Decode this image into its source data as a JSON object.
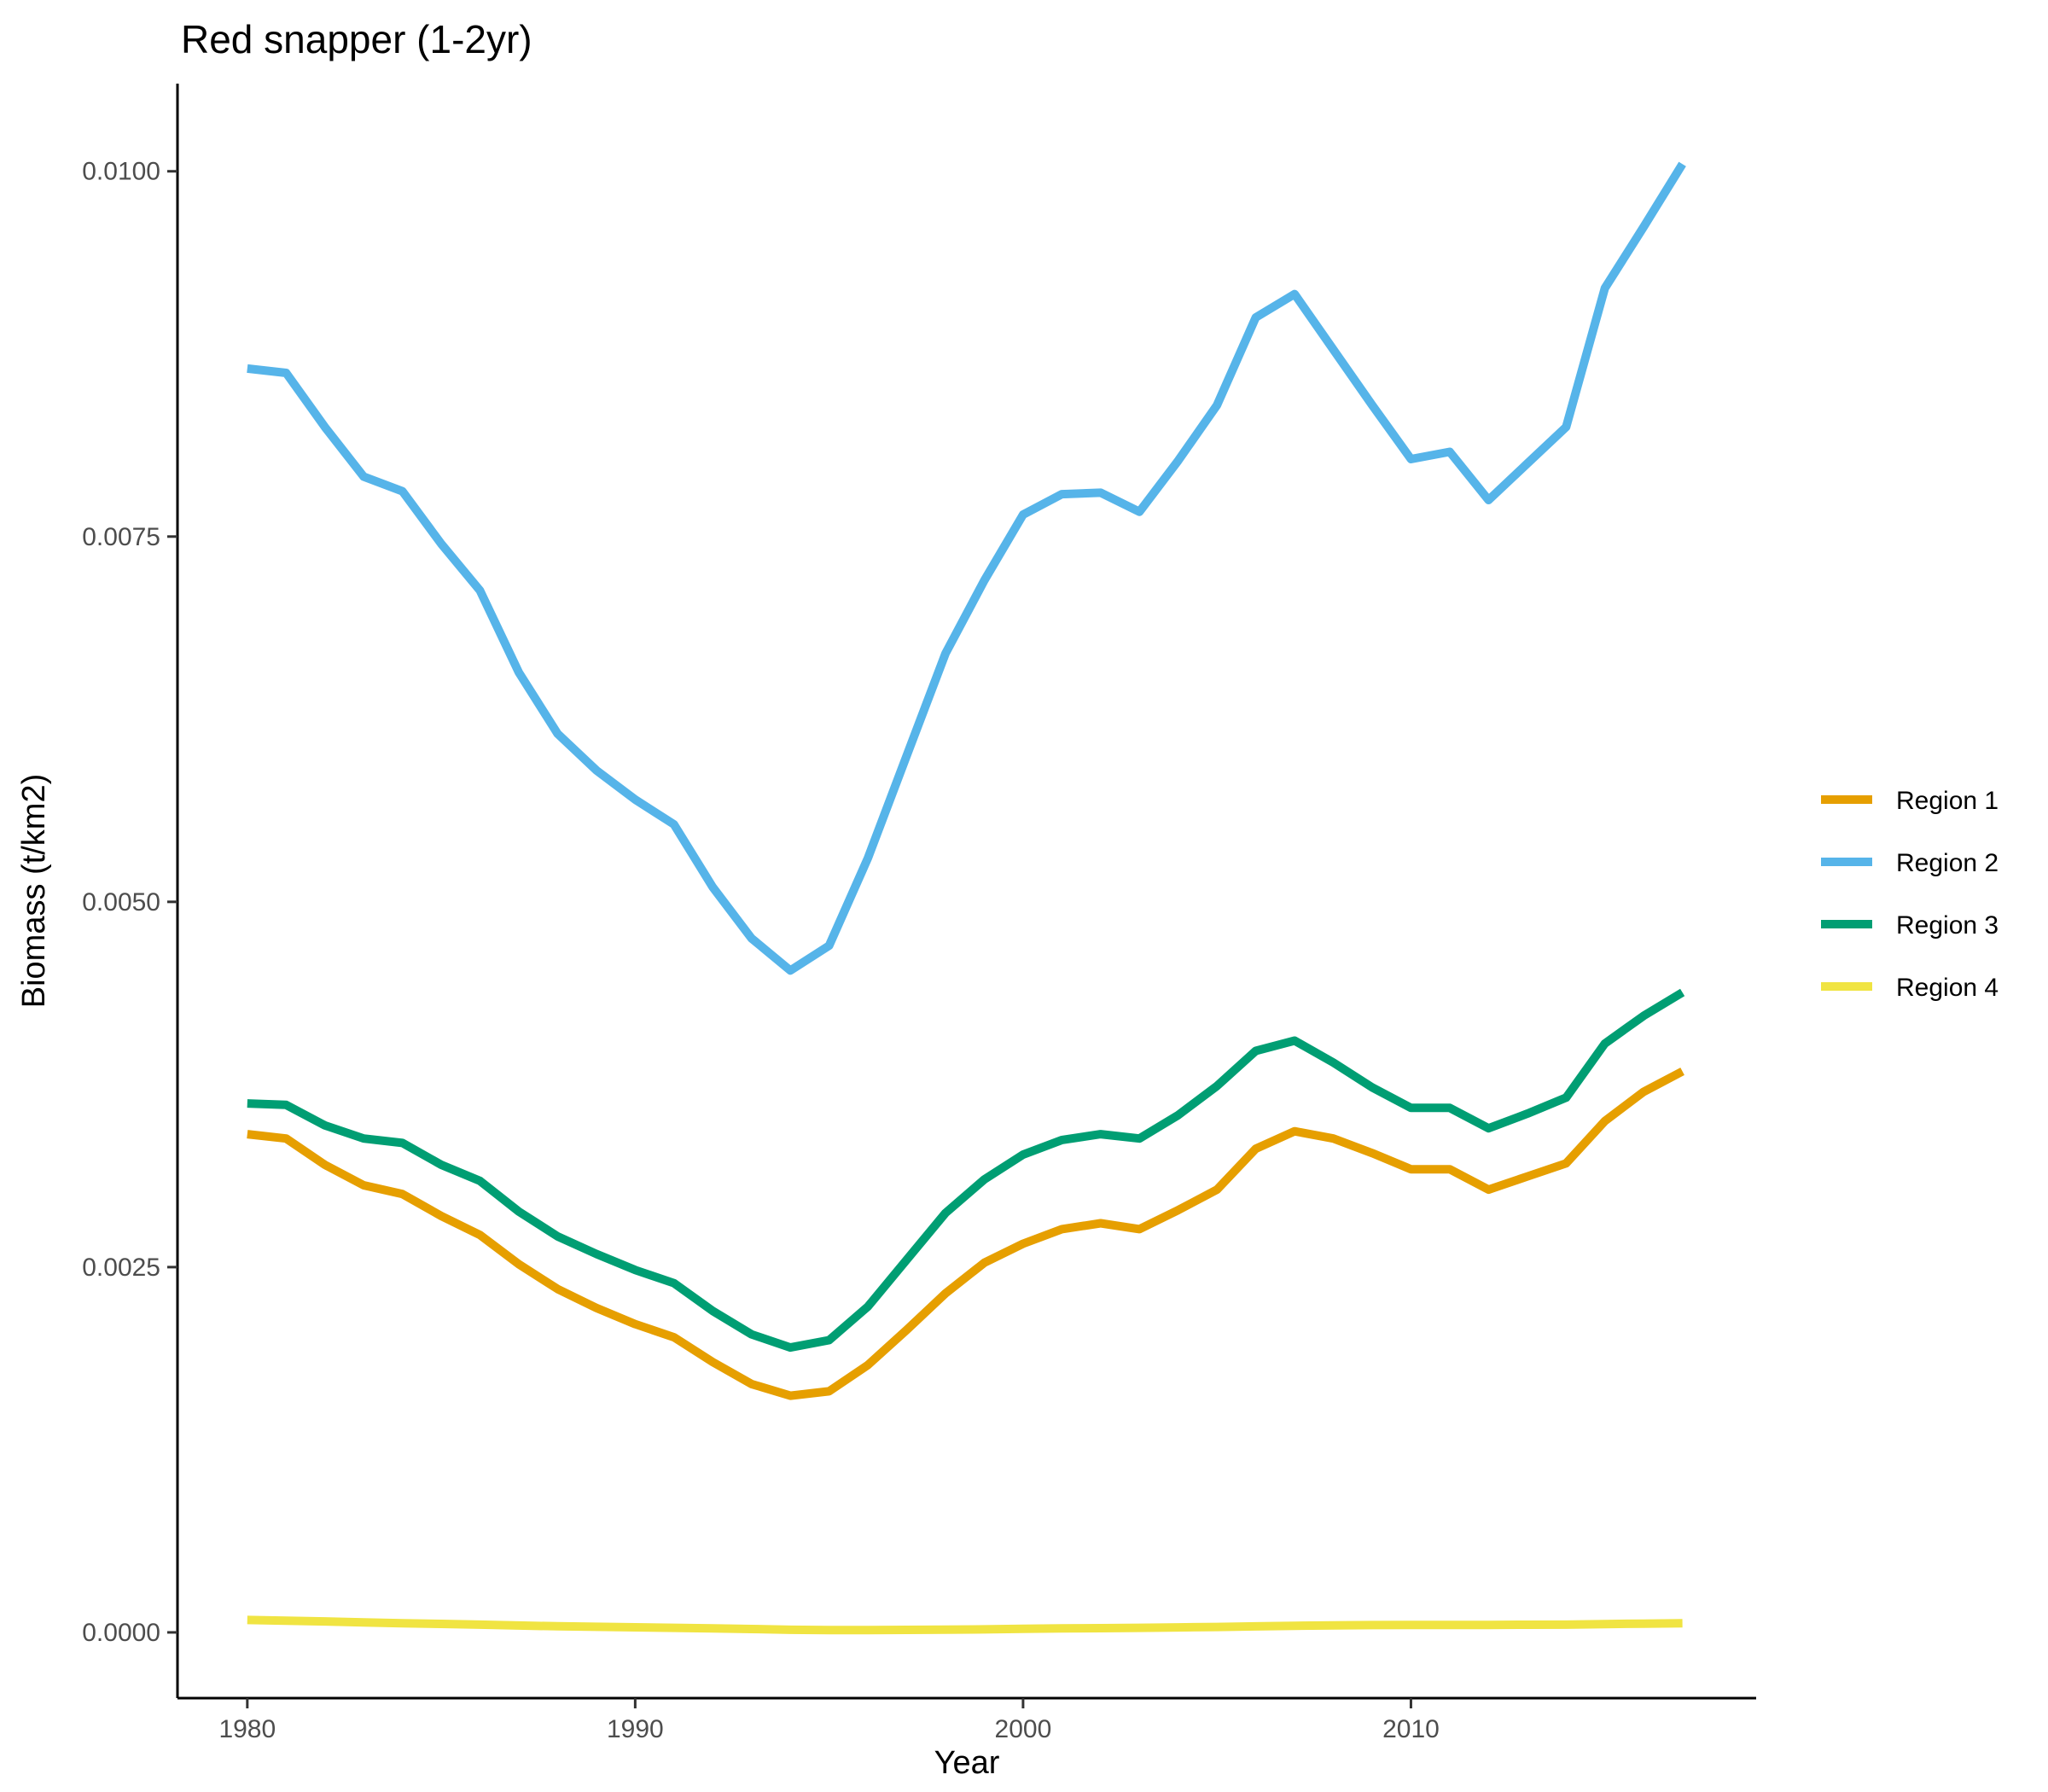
{
  "chart_data": {
    "type": "line",
    "title": "Red snapper (1-2yr)",
    "xlabel": "Year",
    "ylabel": "Biomass (t/km2)",
    "xlim": [
      1978.2,
      2018.9
    ],
    "ylim": [
      -0.00045,
      0.0106
    ],
    "x_ticks": [
      1980,
      1990,
      2000,
      2010
    ],
    "x_tick_labels": [
      "1980",
      "1990",
      "2000",
      "2010"
    ],
    "y_ticks": [
      0,
      0.0025,
      0.005,
      0.0075,
      0.01
    ],
    "y_tick_labels": [
      "0.0000",
      "0.0025",
      "0.0050",
      "0.0075",
      "0.0100"
    ],
    "grid": false,
    "legend_position": "right",
    "x": [
      1980,
      1981,
      1982,
      1983,
      1984,
      1985,
      1986,
      1987,
      1988,
      1989,
      1990,
      1991,
      1992,
      1993,
      1994,
      1995,
      1996,
      1997,
      1998,
      1999,
      2000,
      2001,
      2002,
      2003,
      2004,
      2005,
      2006,
      2007,
      2008,
      2009,
      2010,
      2011,
      2012,
      2013,
      2014,
      2015,
      2016,
      2017
    ],
    "series": [
      {
        "name": "Region 1",
        "color": "#E69F00",
        "values": [
          0.00341,
          0.00338,
          0.0032,
          0.00306,
          0.003,
          0.00285,
          0.00272,
          0.00252,
          0.00235,
          0.00222,
          0.00211,
          0.00202,
          0.00185,
          0.0017,
          0.00162,
          0.00165,
          0.00183,
          0.00207,
          0.00232,
          0.00253,
          0.00266,
          0.00276,
          0.0028,
          0.00276,
          0.00289,
          0.00303,
          0.00331,
          0.00343,
          0.00338,
          0.00328,
          0.00317,
          0.00317,
          0.00303,
          0.00312,
          0.00321,
          0.0035,
          0.0037,
          0.00384
        ]
      },
      {
        "name": "Region 2",
        "color": "#56B4E9",
        "values": [
          0.00865,
          0.00862,
          0.00825,
          0.00791,
          0.00781,
          0.00745,
          0.00713,
          0.00657,
          0.00615,
          0.0059,
          0.0057,
          0.00553,
          0.0051,
          0.00475,
          0.00453,
          0.0047,
          0.0053,
          0.006,
          0.0067,
          0.0072,
          0.00765,
          0.00779,
          0.0078,
          0.00767,
          0.00802,
          0.0084,
          0.009,
          0.00916,
          0.00878,
          0.0084,
          0.00803,
          0.00808,
          0.00775,
          0.008,
          0.00825,
          0.0092,
          0.00962,
          0.01005
        ]
      },
      {
        "name": "Region 3",
        "color": "#009E73",
        "values": [
          0.00362,
          0.00361,
          0.00347,
          0.00338,
          0.00335,
          0.0032,
          0.00309,
          0.00288,
          0.00271,
          0.00259,
          0.00248,
          0.00239,
          0.0022,
          0.00204,
          0.00195,
          0.002,
          0.00223,
          0.00255,
          0.00287,
          0.0031,
          0.00327,
          0.00337,
          0.00341,
          0.00338,
          0.00354,
          0.00374,
          0.00398,
          0.00405,
          0.0039,
          0.00373,
          0.00359,
          0.00359,
          0.00345,
          0.00355,
          0.00366,
          0.00403,
          0.00422,
          0.00438
        ]
      },
      {
        "name": "Region 4",
        "color": "#F0E442",
        "values": [
          8.5e-05,
          8e-05,
          7.5e-05,
          6.8e-05,
          6.3e-05,
          5.8e-05,
          5.3e-05,
          4.7e-05,
          4.2e-05,
          3.8e-05,
          3.5e-05,
          3.1e-05,
          2.7e-05,
          2.3e-05,
          1.8e-05,
          1.6e-05,
          1.6e-05,
          1.7e-05,
          1.9e-05,
          2.1e-05,
          2.4e-05,
          2.7e-05,
          2.9e-05,
          3.1e-05,
          3.4e-05,
          3.7e-05,
          4.1e-05,
          4.5e-05,
          4.8e-05,
          5e-05,
          5.1e-05,
          5.1e-05,
          5.1e-05,
          5.2e-05,
          5.3e-05,
          5.7e-05,
          6e-05,
          6.3e-05
        ]
      }
    ]
  }
}
